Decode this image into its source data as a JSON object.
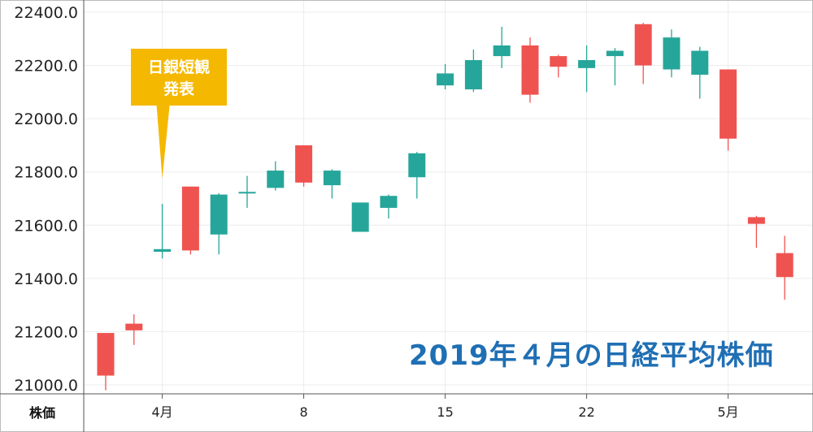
{
  "chart_data": {
    "type": "candlestick",
    "title": "2019年４月の日経平均株価",
    "ylim": [
      20980,
      22420
    ],
    "yticks": [
      "22400.0",
      "22200.0",
      "22000.0",
      "21800.0",
      "21600.0",
      "21400.0",
      "21200.0",
      "21000.0"
    ],
    "ytick_values": [
      22400,
      22200,
      22000,
      21800,
      21600,
      21400,
      21200,
      21000
    ],
    "corner_label": "株価",
    "xticks": [
      {
        "label": "4月",
        "index": 2
      },
      {
        "label": "8",
        "index": 7
      },
      {
        "label": "15",
        "index": 12
      },
      {
        "label": "22",
        "index": 17
      },
      {
        "label": "5月",
        "index": 22
      }
    ],
    "grid": true,
    "colors": {
      "up": "#26a69a",
      "down": "#ef5350",
      "grid": "#ececec",
      "axis": "#555555"
    },
    "candles": [
      {
        "o": 21195,
        "h": 21195,
        "l": 20980,
        "c": 21035
      },
      {
        "o": 21230,
        "h": 21265,
        "l": 21150,
        "c": 21205
      },
      {
        "o": 21500,
        "h": 21680,
        "l": 21475,
        "c": 21510
      },
      {
        "o": 21745,
        "h": 21745,
        "l": 21490,
        "c": 21505
      },
      {
        "o": 21565,
        "h": 21720,
        "l": 21490,
        "c": 21715
      },
      {
        "o": 21725,
        "h": 21785,
        "l": 21665,
        "c": 21725
      },
      {
        "o": 21740,
        "h": 21840,
        "l": 21730,
        "c": 21805
      },
      {
        "o": 21900,
        "h": 21900,
        "l": 21745,
        "c": 21760
      },
      {
        "o": 21750,
        "h": 21810,
        "l": 21700,
        "c": 21805
      },
      {
        "o": 21575,
        "h": 21685,
        "l": 21575,
        "c": 21685
      },
      {
        "o": 21665,
        "h": 21715,
        "l": 21625,
        "c": 21710
      },
      {
        "o": 21780,
        "h": 21875,
        "l": 21700,
        "c": 21870
      },
      {
        "o": 22125,
        "h": 22205,
        "l": 22110,
        "c": 22170
      },
      {
        "o": 22110,
        "h": 22260,
        "l": 22100,
        "c": 22220
      },
      {
        "o": 22235,
        "h": 22345,
        "l": 22190,
        "c": 22275
      },
      {
        "o": 22275,
        "h": 22305,
        "l": 22060,
        "c": 22090
      },
      {
        "o": 22235,
        "h": 22240,
        "l": 22155,
        "c": 22195
      },
      {
        "o": 22190,
        "h": 22275,
        "l": 22100,
        "c": 22220
      },
      {
        "o": 22235,
        "h": 22265,
        "l": 22125,
        "c": 22255
      },
      {
        "o": 22355,
        "h": 22360,
        "l": 22130,
        "c": 22200
      },
      {
        "o": 22185,
        "h": 22335,
        "l": 22155,
        "c": 22305
      },
      {
        "o": 22165,
        "h": 22270,
        "l": 22075,
        "c": 22255
      },
      {
        "o": 22185,
        "h": 22185,
        "l": 21880,
        "c": 21925
      },
      {
        "o": 21630,
        "h": 21635,
        "l": 21515,
        "c": 21605
      },
      {
        "o": 21495,
        "h": 21560,
        "l": 21320,
        "c": 21405
      }
    ],
    "annotation": {
      "text_line1": "日銀短観",
      "text_line2": "発表",
      "candle_index": 2,
      "color": "#f5b800"
    }
  }
}
